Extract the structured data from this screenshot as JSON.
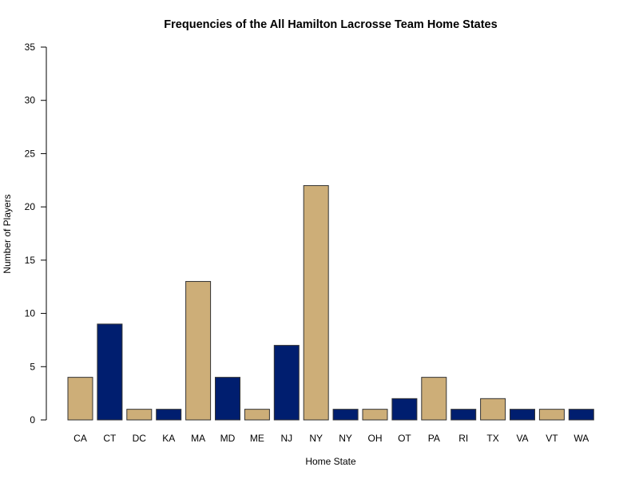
{
  "chart_data": {
    "type": "bar",
    "title": "Frequencies of the All Hamilton Lacrosse Team Home States",
    "xlabel": "Home State",
    "ylabel": "Number of Players",
    "categories": [
      "CA",
      "CT",
      "DC",
      "KA",
      "MA",
      "MD",
      "ME",
      "NJ",
      "NY",
      "NY",
      "OH",
      "OT",
      "PA",
      "RI",
      "TX",
      "VA",
      "VT",
      "WA"
    ],
    "values": [
      4,
      9,
      1,
      1,
      13,
      4,
      1,
      7,
      22,
      1,
      1,
      2,
      4,
      1,
      2,
      1,
      1,
      1
    ],
    "ylim": [
      0,
      35
    ],
    "yticks": [
      0,
      5,
      10,
      15,
      20,
      25,
      30,
      35
    ],
    "colors": [
      "#CDAE78",
      "#001E6F"
    ],
    "bar_stroke": "#333333",
    "grid": false,
    "legend": "none"
  }
}
